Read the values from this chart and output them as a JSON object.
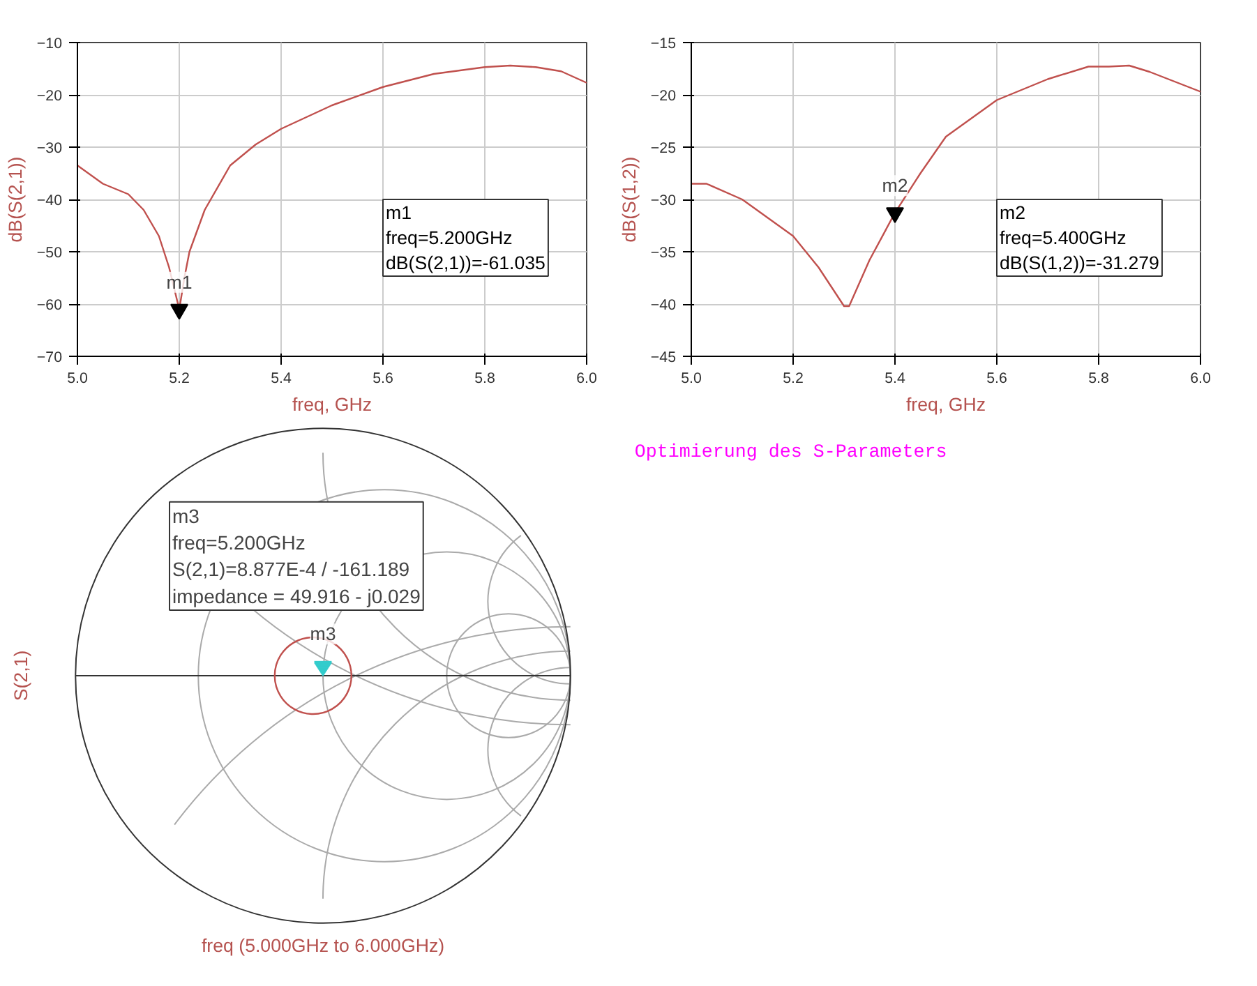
{
  "chart_data": [
    {
      "type": "line",
      "xlabel": "freq, GHz",
      "ylabel": "dB(S(2,1))",
      "xlim": [
        5.0,
        6.0
      ],
      "ylim": [
        -70,
        -10
      ],
      "xticks": [
        {
          "value": 5.0,
          "label": "5.0"
        },
        {
          "value": 5.2,
          "label": "5.2"
        },
        {
          "value": 5.4,
          "label": "5.4"
        },
        {
          "value": 5.6,
          "label": "5.6"
        },
        {
          "value": 5.8,
          "label": "5.8"
        },
        {
          "value": 6.0,
          "label": "6.0"
        }
      ],
      "yticks": [
        -70,
        -60,
        -50,
        -40,
        -30,
        -20,
        -10
      ],
      "grid": true,
      "series": [
        {
          "color": "#c0504d",
          "x": [
            5.0,
            5.05,
            5.1,
            5.13,
            5.16,
            5.18,
            5.19,
            5.2,
            5.21,
            5.22,
            5.25,
            5.3,
            5.35,
            5.4,
            5.5,
            5.6,
            5.7,
            5.8,
            5.85,
            5.9,
            5.95,
            6.0
          ],
          "values": [
            -33.5,
            -37,
            -39,
            -42,
            -47,
            -53,
            -57,
            -61.035,
            -55,
            -50,
            -42,
            -33.5,
            -29.5,
            -26.5,
            -22,
            -18.5,
            -16,
            -14.7,
            -14.4,
            -14.7,
            -15.5,
            -17.7
          ]
        }
      ],
      "annotations": [
        "m1\nfreq=5.200GHz\ndB(S(2,1))=-61.035",
        {
          "text": "m1",
          "x": 5.2,
          "y": -61.035
        }
      ]
    },
    {
      "type": "line",
      "xlabel": "freq, GHz",
      "ylabel": "dB(S(1,2))",
      "xlim": [
        5.0,
        6.0
      ],
      "ylim": [
        -45,
        -15
      ],
      "xticks": [
        {
          "value": 5.0,
          "label": "5.0"
        },
        {
          "value": 5.2,
          "label": "5.2"
        },
        {
          "value": 5.4,
          "label": "5.4"
        },
        {
          "value": 5.6,
          "label": "5.6"
        },
        {
          "value": 5.8,
          "label": "5.8"
        },
        {
          "value": 6.0,
          "label": "6.0"
        }
      ],
      "yticks": [
        -45,
        -40,
        -35,
        -30,
        -25,
        -20,
        -15
      ],
      "grid": true,
      "series": [
        {
          "color": "#c0504d",
          "x": [
            5.0,
            5.03,
            5.1,
            5.2,
            5.25,
            5.3,
            5.31,
            5.35,
            5.4,
            5.45,
            5.5,
            5.6,
            5.7,
            5.78,
            5.82,
            5.86,
            5.9,
            6.0
          ],
          "values": [
            -28.5,
            -28.5,
            -30,
            -33.5,
            -36.5,
            -40.2,
            -40.2,
            -35.8,
            -31.279,
            -27.5,
            -24,
            -20.5,
            -18.5,
            -17.3,
            -17.3,
            -17.2,
            -17.8,
            -19.7
          ]
        }
      ],
      "annotations": [
        "m2\nfreq=5.400GHz\ndB(S(1,2))=-31.279",
        {
          "text": "m2",
          "x": 5.4,
          "y": -31.279
        }
      ]
    },
    {
      "type": "other",
      "xlabel": "freq (5.000GHz to 6.000GHz)",
      "ylabel": "S(2,1)",
      "annotations": [
        "m3\nfreq=5.200GHz\nS(2,1)=8.877E-4 / -161.189\nimpedance = 49.916 - j0.029",
        "m3"
      ]
    },
    {
      "type": "other",
      "annotations": [
        "Optimierung des S-Parameters"
      ]
    }
  ]
}
